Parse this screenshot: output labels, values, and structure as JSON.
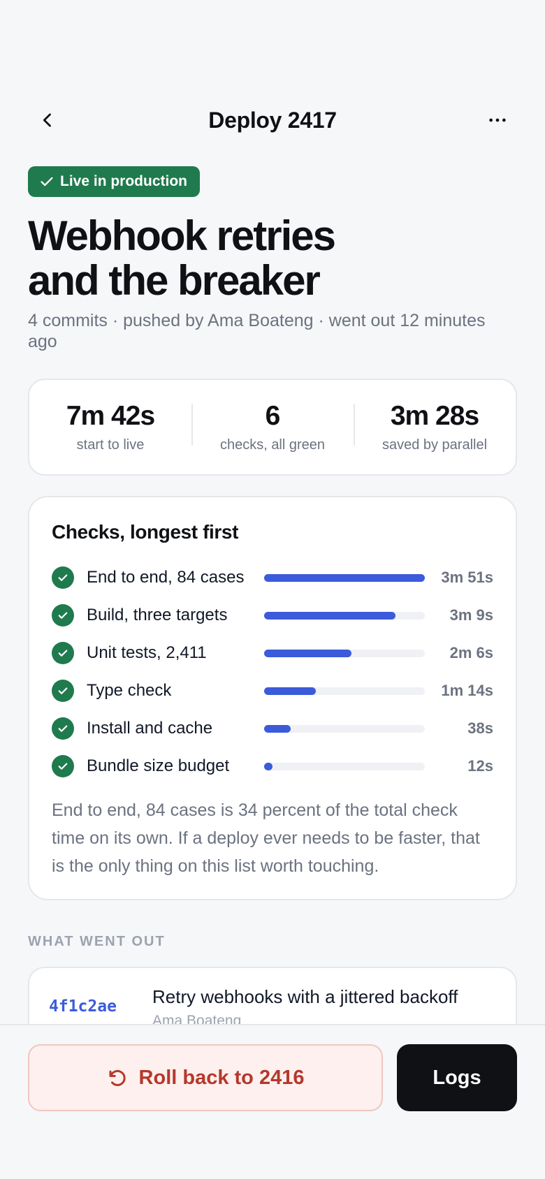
{
  "nav": {
    "title": "Deploy 2417",
    "back_icon": "chevron-left-icon",
    "more_icon": "more-horizontal-icon"
  },
  "status": {
    "label": "Live in production",
    "color": "#1f7a4d"
  },
  "deploy": {
    "title_line1": "Webhook retries",
    "title_line2": "and the breaker",
    "subtitle": "4 commits · pushed by Ama Boateng · went out 12 minutes ago"
  },
  "stats": [
    {
      "value": "7m 42s",
      "label": "start to live"
    },
    {
      "value": "6",
      "label": "checks, all green"
    },
    {
      "value": "3m 28s",
      "label": "saved by parallel"
    }
  ],
  "checks": {
    "title": "Checks, longest first",
    "max_seconds": 231,
    "items": [
      {
        "name": "End to end, 84 cases",
        "duration": "3m 51s",
        "seconds": 231
      },
      {
        "name": "Build, three targets",
        "duration": "3m 9s",
        "seconds": 189
      },
      {
        "name": "Unit tests, 2,411",
        "duration": "2m 6s",
        "seconds": 126
      },
      {
        "name": "Type check",
        "duration": "1m 14s",
        "seconds": 74
      },
      {
        "name": "Install and cache",
        "duration": "38s",
        "seconds": 38
      },
      {
        "name": "Bundle size budget",
        "duration": "12s",
        "seconds": 12
      }
    ],
    "note": "End to end, 84 cases is 34 percent of the total check time on its own. If a deploy ever needs to be faster, that is the only thing on this list worth touching."
  },
  "changes": {
    "section_label": "WHAT WENT OUT",
    "commits": [
      {
        "sha": "4f1c2ae",
        "message": "Retry webhooks with a jittered backoff",
        "author": "Ama Boateng"
      }
    ]
  },
  "actions": {
    "rollback_label": "Roll back to 2416",
    "logs_label": "Logs"
  },
  "colors": {
    "accent": "#3b5bdb",
    "success": "#1f7a4d",
    "danger": "#b4392c"
  }
}
